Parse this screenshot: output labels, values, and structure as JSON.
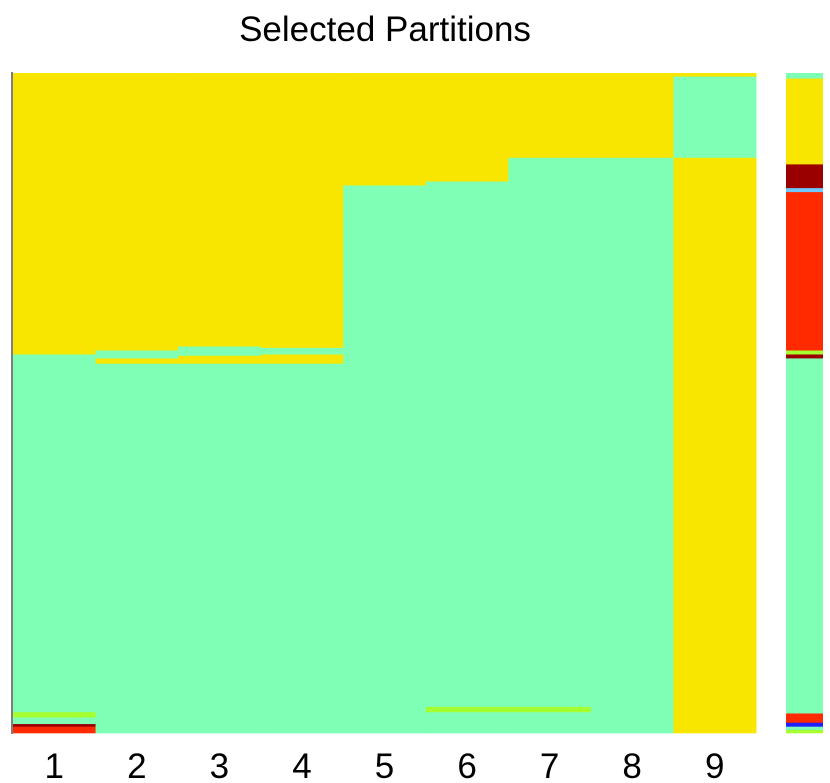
{
  "chart_data": {
    "type": "heatmap",
    "title": "Selected Partitions",
    "xlabel": "",
    "ylabel": "",
    "categories": [
      "1",
      "2",
      "3",
      "4",
      "5",
      "6",
      "7",
      "8",
      "9"
    ],
    "ylim": [
      0,
      1
    ],
    "colors": {
      "mint": "#7effb5",
      "yellow": "#f8e500",
      "lime": "#a6ff2e",
      "dark_red": "#9a0000",
      "red": "#ff2a00",
      "light_blue": "#6fc8ff",
      "blue": "#1f1fff"
    },
    "columns": [
      {
        "category": "1",
        "segments": [
          {
            "from": 0.0,
            "to": 0.01,
            "color": "red"
          },
          {
            "from": 0.01,
            "to": 0.014,
            "color": "dark_red"
          },
          {
            "from": 0.014,
            "to": 0.024,
            "color": "mint"
          },
          {
            "from": 0.024,
            "to": 0.032,
            "color": "lime"
          },
          {
            "from": 0.032,
            "to": 0.574,
            "color": "mint"
          },
          {
            "from": 0.574,
            "to": 1.0,
            "color": "yellow"
          }
        ]
      },
      {
        "category": "2",
        "segments": [
          {
            "from": 0.0,
            "to": 0.56,
            "color": "mint"
          },
          {
            "from": 0.56,
            "to": 0.568,
            "color": "yellow"
          },
          {
            "from": 0.568,
            "to": 0.58,
            "color": "mint"
          },
          {
            "from": 0.58,
            "to": 1.0,
            "color": "yellow"
          }
        ]
      },
      {
        "category": "3",
        "segments": [
          {
            "from": 0.0,
            "to": 0.56,
            "color": "mint"
          },
          {
            "from": 0.56,
            "to": 0.572,
            "color": "yellow"
          },
          {
            "from": 0.572,
            "to": 0.586,
            "color": "mint"
          },
          {
            "from": 0.586,
            "to": 1.0,
            "color": "yellow"
          }
        ]
      },
      {
        "category": "4",
        "segments": [
          {
            "from": 0.0,
            "to": 0.56,
            "color": "mint"
          },
          {
            "from": 0.56,
            "to": 0.574,
            "color": "yellow"
          },
          {
            "from": 0.574,
            "to": 0.584,
            "color": "mint"
          },
          {
            "from": 0.584,
            "to": 1.0,
            "color": "yellow"
          }
        ]
      },
      {
        "category": "5",
        "segments": [
          {
            "from": 0.0,
            "to": 0.83,
            "color": "mint"
          },
          {
            "from": 0.83,
            "to": 1.0,
            "color": "yellow"
          }
        ]
      },
      {
        "category": "6",
        "segments": [
          {
            "from": 0.0,
            "to": 0.032,
            "color": "mint"
          },
          {
            "from": 0.032,
            "to": 0.04,
            "color": "lime"
          },
          {
            "from": 0.04,
            "to": 0.836,
            "color": "mint"
          },
          {
            "from": 0.836,
            "to": 1.0,
            "color": "yellow"
          }
        ]
      },
      {
        "category": "7",
        "segments": [
          {
            "from": 0.0,
            "to": 0.032,
            "color": "mint"
          },
          {
            "from": 0.032,
            "to": 0.04,
            "color": "lime"
          },
          {
            "from": 0.04,
            "to": 0.872,
            "color": "mint"
          },
          {
            "from": 0.872,
            "to": 1.0,
            "color": "yellow"
          }
        ]
      },
      {
        "category": "8",
        "segments": [
          {
            "from": 0.0,
            "to": 0.872,
            "color": "mint"
          },
          {
            "from": 0.872,
            "to": 1.0,
            "color": "yellow"
          }
        ]
      },
      {
        "category": "9",
        "segments": [
          {
            "from": 0.0,
            "to": 0.872,
            "color": "yellow"
          },
          {
            "from": 0.872,
            "to": 0.995,
            "color": "mint"
          },
          {
            "from": 0.995,
            "to": 1.0,
            "color": "yellow"
          }
        ]
      }
    ],
    "side_column": {
      "segments": [
        {
          "from": 0.0,
          "to": 0.005,
          "color": "lime"
        },
        {
          "from": 0.005,
          "to": 0.01,
          "color": "mint"
        },
        {
          "from": 0.01,
          "to": 0.016,
          "color": "blue"
        },
        {
          "from": 0.016,
          "to": 0.03,
          "color": "red"
        },
        {
          "from": 0.03,
          "to": 0.568,
          "color": "mint"
        },
        {
          "from": 0.568,
          "to": 0.574,
          "color": "dark_red"
        },
        {
          "from": 0.574,
          "to": 0.58,
          "color": "lime"
        },
        {
          "from": 0.58,
          "to": 0.82,
          "color": "red"
        },
        {
          "from": 0.82,
          "to": 0.826,
          "color": "light_blue"
        },
        {
          "from": 0.826,
          "to": 0.862,
          "color": "dark_red"
        },
        {
          "from": 0.862,
          "to": 0.992,
          "color": "yellow"
        },
        {
          "from": 0.992,
          "to": 1.0,
          "color": "mint"
        }
      ]
    }
  }
}
